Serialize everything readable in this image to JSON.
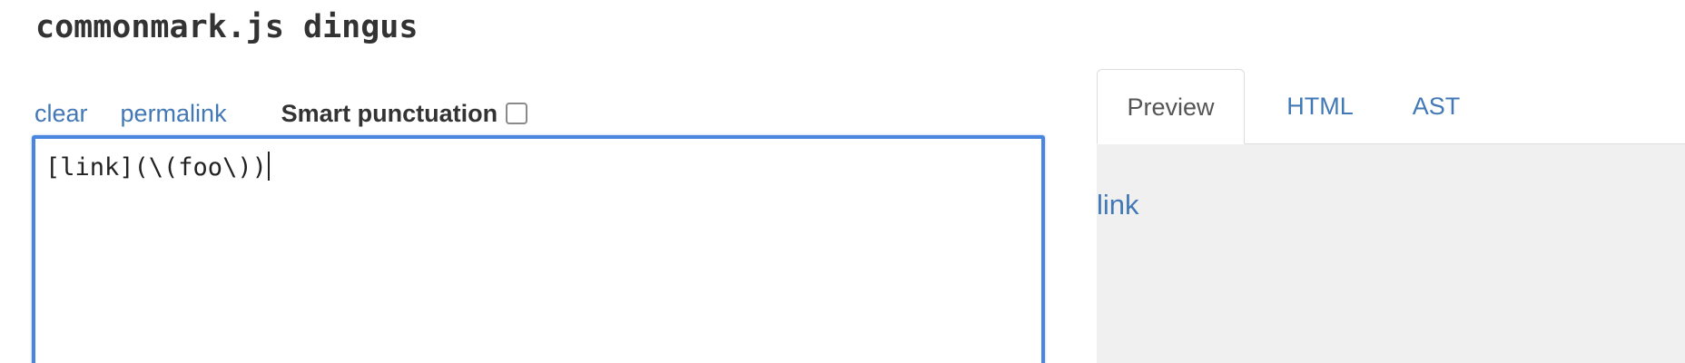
{
  "header": {
    "title": "commonmark.js dingus"
  },
  "toolbar": {
    "clear_label": "clear",
    "permalink_label": "permalink",
    "smart_punctuation_label": "Smart punctuation",
    "smart_punctuation_checked": false
  },
  "editor": {
    "value": "[link](\\(foo\\))"
  },
  "tabs": [
    {
      "label": "Preview",
      "active": true
    },
    {
      "label": "HTML",
      "active": false
    },
    {
      "label": "AST",
      "active": false
    }
  ],
  "preview": {
    "link_text": "link"
  },
  "colors": {
    "link": "#4278b5",
    "editor_border": "#4a86e0",
    "preview_background": "#f0f0f0",
    "text": "#333333"
  }
}
